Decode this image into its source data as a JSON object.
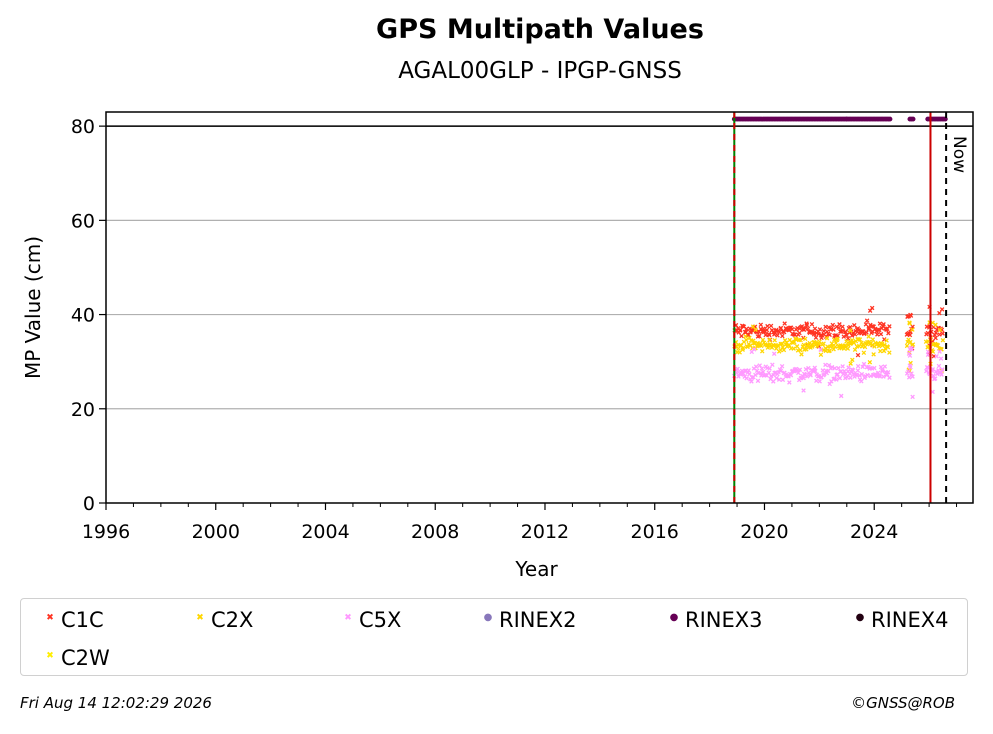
{
  "chart_data": {
    "type": "scatter",
    "title": "GPS Multipath Values",
    "subtitle": "AGAL00GLP - IPGP-GNSS",
    "xlabel": "Year",
    "ylabel": "MP Value (cm)",
    "xlim": [
      1996,
      2027.6
    ],
    "ylim": [
      0,
      83
    ],
    "x_ticks": [
      1996,
      2000,
      2004,
      2008,
      2012,
      2016,
      2020,
      2024
    ],
    "y_ticks": [
      0,
      20,
      40,
      60,
      80
    ],
    "grid": "horizontal",
    "legend_position": "bottom",
    "reference_line_y": 80,
    "vertical_lines": [
      {
        "x": 2018.9,
        "color": "#008000",
        "style": "solid"
      },
      {
        "x": 2018.9,
        "color": "#cc0000",
        "style": "dashed"
      },
      {
        "x": 2026.05,
        "color": "#cc0000",
        "style": "solid"
      },
      {
        "x": 2026.62,
        "color": "#000000",
        "style": "dashed",
        "label": "Now"
      }
    ],
    "series": [
      {
        "name": "C1C",
        "marker": "x",
        "color": "#ff3322",
        "mean": 36.5,
        "spread": 1.4,
        "segments": [
          [
            2018.9,
            2024.55
          ],
          [
            2025.2,
            2025.4
          ],
          [
            2025.9,
            2026.5
          ]
        ]
      },
      {
        "name": "C2X",
        "marker": "x",
        "color": "#ffd700",
        "mean": 33.5,
        "spread": 1.3,
        "segments": [
          [
            2018.9,
            2024.55
          ],
          [
            2025.2,
            2025.4
          ],
          [
            2025.9,
            2026.5
          ]
        ]
      },
      {
        "name": "C5X",
        "marker": "x",
        "color": "#ff99ff",
        "mean": 27.5,
        "spread": 1.6,
        "segments": [
          [
            2018.9,
            2024.55
          ],
          [
            2025.2,
            2025.4
          ],
          [
            2025.9,
            2026.5
          ]
        ]
      },
      {
        "name": "RINEX2",
        "marker": "dot",
        "color": "#8877bb",
        "values": []
      },
      {
        "name": "RINEX3",
        "marker": "dot",
        "color": "#660055",
        "y": 81.5,
        "segments": [
          [
            2018.9,
            2023.0
          ],
          [
            2023.0,
            2024.6
          ],
          [
            2025.3,
            2025.45
          ],
          [
            2025.95,
            2026.6
          ]
        ]
      },
      {
        "name": "RINEX4",
        "marker": "dot",
        "color": "#220011",
        "values": []
      },
      {
        "name": "C2W",
        "marker": "x",
        "color": "#ffee00",
        "values": []
      }
    ]
  },
  "footer": {
    "date": "Fri Aug 14 12:02:29 2026",
    "credit": "©GNSS@ROB"
  }
}
